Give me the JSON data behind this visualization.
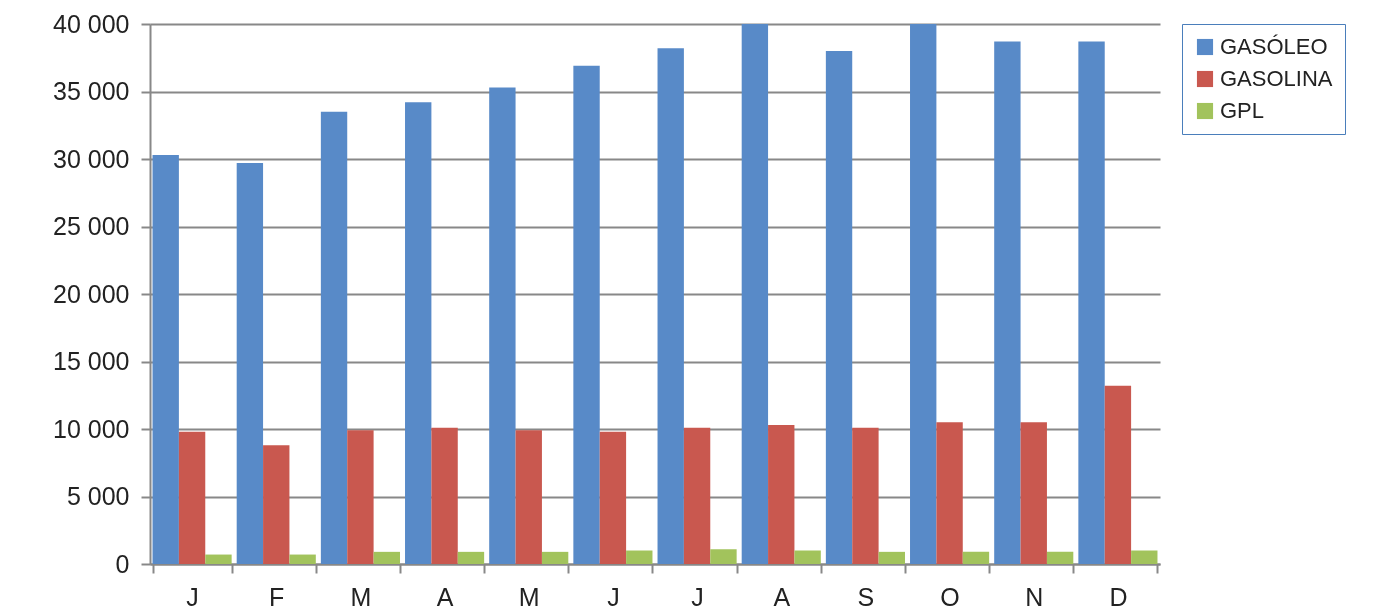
{
  "chart_data": {
    "type": "bar",
    "categories": [
      "J",
      "F",
      "M",
      "A",
      "M",
      "J",
      "J",
      "A",
      "S",
      "O",
      "N",
      "D"
    ],
    "series": [
      {
        "name": "GASÓLEO",
        "color": "#588ac8",
        "values": [
          30300,
          29700,
          33500,
          34200,
          35300,
          36900,
          38200,
          40000,
          38000,
          40000,
          38700,
          38700
        ]
      },
      {
        "name": "GASOLINA",
        "color": "#c9584f",
        "values": [
          9800,
          8800,
          9900,
          10100,
          9900,
          9800,
          10100,
          10300,
          10100,
          10500,
          10500,
          13200
        ]
      },
      {
        "name": "GPL",
        "color": "#a2c35c",
        "values": [
          700,
          700,
          900,
          900,
          900,
          1000,
          1100,
          1000,
          900,
          900,
          900,
          1000
        ]
      }
    ],
    "ylim": [
      0,
      40000
    ],
    "yticks": [
      0,
      {
        "value": 5000,
        "label": "5 000"
      },
      {
        "value": 10000,
        "label": "10 000"
      },
      {
        "value": 15000,
        "label": "15 000"
      },
      {
        "value": 20000,
        "label": "20 000"
      },
      {
        "value": 25000,
        "label": "25 000"
      },
      {
        "value": 30000,
        "label": "30 000"
      },
      {
        "value": 35000,
        "label": "35 000"
      },
      {
        "value": 40000,
        "label": "40 000"
      }
    ],
    "grid": "y",
    "legend": "right"
  }
}
